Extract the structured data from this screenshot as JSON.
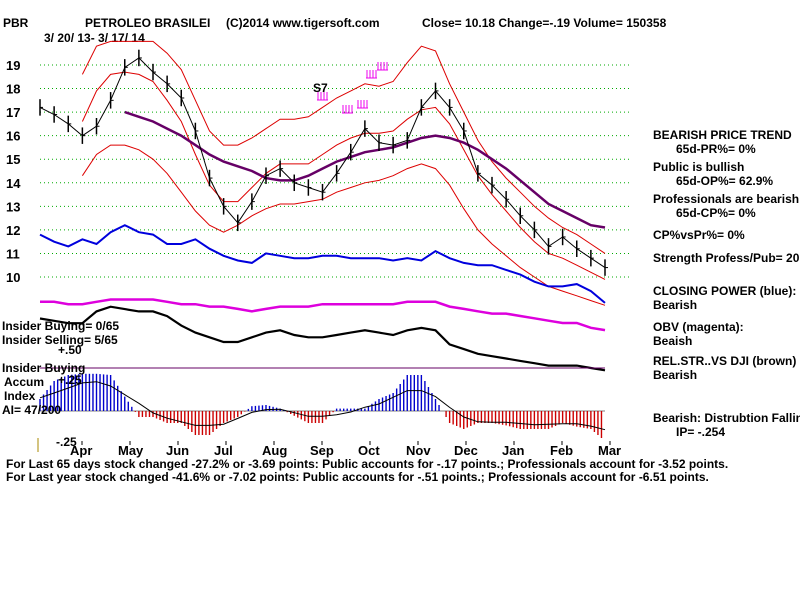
{
  "header": {
    "ticker": "PBR",
    "company": "PETROLEO BRASILEI",
    "source": "(C)2014 www.tigersoft.com",
    "quote": "Close=  10.18  Change=-.19 Volume= 150358",
    "date_range": "3/ 20/ 13-  3/ 17/ 14"
  },
  "colors": {
    "price": "#000000",
    "closing_power": "#0000dd",
    "obv": "#dd00dd",
    "band": "#dd0000",
    "ma": "#660066",
    "rel_str": "#000000",
    "accum_pos": "#0000cc",
    "accum_neg": "#cc0000",
    "grid": "#00aa00",
    "signal": "#ee00ee"
  },
  "chart_data": {
    "type": "line",
    "title": "PETROLEO BRASILEI",
    "x_ticks": [
      "Apr",
      "May",
      "Jun",
      "Jul",
      "Aug",
      "Sep",
      "Oct",
      "Nov",
      "Dec",
      "Jan",
      "Feb",
      "Mar"
    ],
    "y_ticks": [
      19,
      18,
      17,
      16,
      15,
      14,
      13,
      12,
      11,
      10
    ],
    "ylim": [
      9.5,
      19.5
    ],
    "grid": "dotted horizontal",
    "signal_label": "S7",
    "price_close": [
      17.2,
      16.9,
      16.5,
      16.0,
      16.4,
      17.5,
      18.9,
      19.3,
      18.7,
      18.2,
      17.6,
      16.2,
      14.2,
      13.0,
      12.3,
      13.2,
      14.3,
      14.6,
      14.0,
      13.8,
      13.6,
      14.4,
      15.3,
      16.3,
      15.7,
      15.6,
      15.8,
      17.2,
      17.9,
      17.2,
      16.2,
      14.4,
      13.9,
      13.3,
      12.6,
      12.0,
      11.3,
      11.7,
      11.2,
      10.8,
      10.4
    ],
    "ma_long": [
      null,
      null,
      null,
      null,
      null,
      null,
      17.0,
      16.8,
      16.6,
      16.3,
      16.0,
      15.6,
      15.2,
      14.9,
      14.7,
      14.5,
      14.2,
      14.1,
      14.1,
      14.3,
      14.6,
      14.9,
      15.1,
      15.3,
      15.4,
      15.5,
      15.7,
      15.9,
      16.0,
      15.9,
      15.7,
      15.4,
      15.0,
      14.6,
      14.1,
      13.6,
      13.1,
      12.8,
      12.5,
      12.2,
      12.1
    ],
    "band_upper": [
      null,
      null,
      null,
      18.6,
      19.8,
      20.0,
      20.0,
      20.0,
      20.0,
      19.5,
      18.8,
      17.5,
      16.2,
      15.6,
      15.6,
      15.9,
      16.3,
      16.7,
      16.7,
      16.8,
      17.2,
      17.6,
      17.9,
      18.2,
      18.1,
      18.3,
      19.1,
      19.8,
      19.6,
      18.2,
      17.0,
      15.8,
      14.9,
      14.2,
      13.6,
      13.0,
      12.5,
      12.1,
      11.8,
      11.4,
      11.0
    ],
    "band_mid": [
      null,
      null,
      null,
      16.6,
      17.9,
      18.6,
      18.7,
      18.6,
      18.3,
      17.5,
      16.6,
      15.2,
      13.9,
      13.2,
      13.2,
      13.8,
      14.4,
      14.8,
      14.8,
      14.8,
      15.2,
      15.6,
      15.9,
      16.1,
      16.1,
      16.2,
      16.7,
      17.1,
      17.2,
      16.5,
      15.4,
      14.3,
      13.5,
      12.8,
      12.1,
      11.5,
      11.0,
      10.8,
      10.5,
      10.2,
      9.9
    ],
    "band_lower": [
      null,
      null,
      null,
      14.3,
      15.2,
      15.6,
      15.6,
      15.4,
      15.0,
      14.4,
      13.6,
      12.8,
      12.2,
      11.9,
      12.2,
      12.6,
      12.9,
      13.1,
      13.1,
      13.2,
      13.3,
      13.6,
      13.8,
      14.0,
      14.1,
      14.3,
      14.6,
      14.8,
      14.6,
      13.9,
      12.9,
      12.0,
      11.4,
      10.9,
      10.4,
      10.0,
      9.6,
      9.4,
      9.2,
      9.0,
      8.8
    ],
    "closing_power": [
      11.8,
      11.5,
      11.3,
      11.6,
      11.4,
      11.9,
      12.2,
      11.9,
      11.8,
      11.4,
      11.4,
      11.6,
      11.2,
      10.9,
      10.7,
      10.6,
      11.0,
      10.9,
      10.8,
      10.8,
      10.9,
      10.9,
      10.8,
      10.8,
      10.8,
      10.7,
      10.8,
      10.7,
      11.1,
      10.8,
      10.6,
      10.5,
      10.5,
      10.3,
      10.1,
      9.8,
      9.6,
      9.6,
      9.7,
      9.4,
      8.9
    ],
    "obv": [
      9.2,
      9.2,
      9.1,
      9.1,
      9.2,
      9.3,
      9.3,
      9.3,
      9.3,
      9.2,
      9.1,
      9.1,
      9.0,
      9.0,
      8.9,
      8.8,
      8.9,
      9.0,
      9.0,
      9.0,
      9.1,
      9.1,
      9.1,
      9.1,
      9.1,
      9.1,
      9.2,
      9.2,
      9.2,
      9.0,
      8.9,
      8.8,
      8.7,
      8.7,
      8.6,
      8.5,
      8.4,
      8.3,
      8.3,
      8.1,
      8.0
    ],
    "rel_str_dji": [
      9.3,
      9.2,
      9.1,
      9.1,
      9.6,
      9.8,
      9.7,
      9.6,
      9.6,
      9.4,
      9.0,
      8.7,
      8.5,
      8.3,
      8.3,
      8.5,
      8.7,
      8.8,
      8.6,
      8.5,
      8.5,
      8.6,
      8.7,
      8.8,
      8.7,
      8.6,
      8.8,
      8.9,
      8.8,
      8.2,
      8.0,
      7.8,
      7.7,
      7.6,
      7.5,
      7.4,
      7.3,
      7.3,
      7.3,
      7.2,
      7.1
    ],
    "accum_index": [
      0.1,
      0.25,
      0.3,
      0.31,
      0.31,
      0.3,
      0.12,
      -0.05,
      -0.05,
      -0.1,
      -0.1,
      -0.2,
      -0.2,
      -0.1,
      -0.05,
      0.04,
      0.05,
      0.02,
      -0.04,
      -0.1,
      -0.1,
      0.02,
      0.02,
      0.02,
      0.1,
      0.15,
      0.3,
      0.3,
      0.1,
      -0.1,
      -0.15,
      -0.1,
      -0.1,
      -0.12,
      -0.15,
      -0.15,
      -0.15,
      -0.1,
      -0.13,
      -0.15,
      -0.25
    ],
    "accum_ylim": [
      -0.25,
      0.5
    ]
  },
  "left_labels": {
    "insider_buying_count": "Insider Buying= 0/65",
    "insider_selling_count": "Insider Selling= 5/65",
    "level_50": "+.50",
    "insider_buying": "Insider Buying",
    "accum_index": "Accum\nIndex",
    "level_25": "+.25",
    "ai_value": "AI= 47/200",
    "level_neg25": "-.25"
  },
  "right_panel": {
    "trend_title": "BEARISH PRICE TREND",
    "pr_pct": "65d-PR%= 0%",
    "public": "Public is bullish",
    "op_pct": "65d-OP%= 62.9%",
    "professionals": "Professionals are bearish",
    "cp_pct": "65d-CP%= 0%",
    "cp_vs_pr": "CP%vsPr%=  0%",
    "strength": "Strength Profess/Pub= 20",
    "closing_power": "CLOSING POWER (blue):",
    "closing_power_value": "Bearish",
    "obv": "OBV (magenta):",
    "obv_value": "Beaish",
    "rel_str": "REL.STR..VS DJI (brown)",
    "rel_str_value": "Bearish",
    "distribution": "Bearish: Distrubtion Falling",
    "ip": "IP= -.254"
  },
  "footer": {
    "line1": "For Last 65 days stock changed -27.2% or -3.69 points:  Public accounts for -.17 points.;  Professionals account for -3.52 points.",
    "line2": "For Last year stock changed -41.6% or -7.02 points:  Public accounts for -.51 points.;  Professionals account for -6.51 points."
  }
}
